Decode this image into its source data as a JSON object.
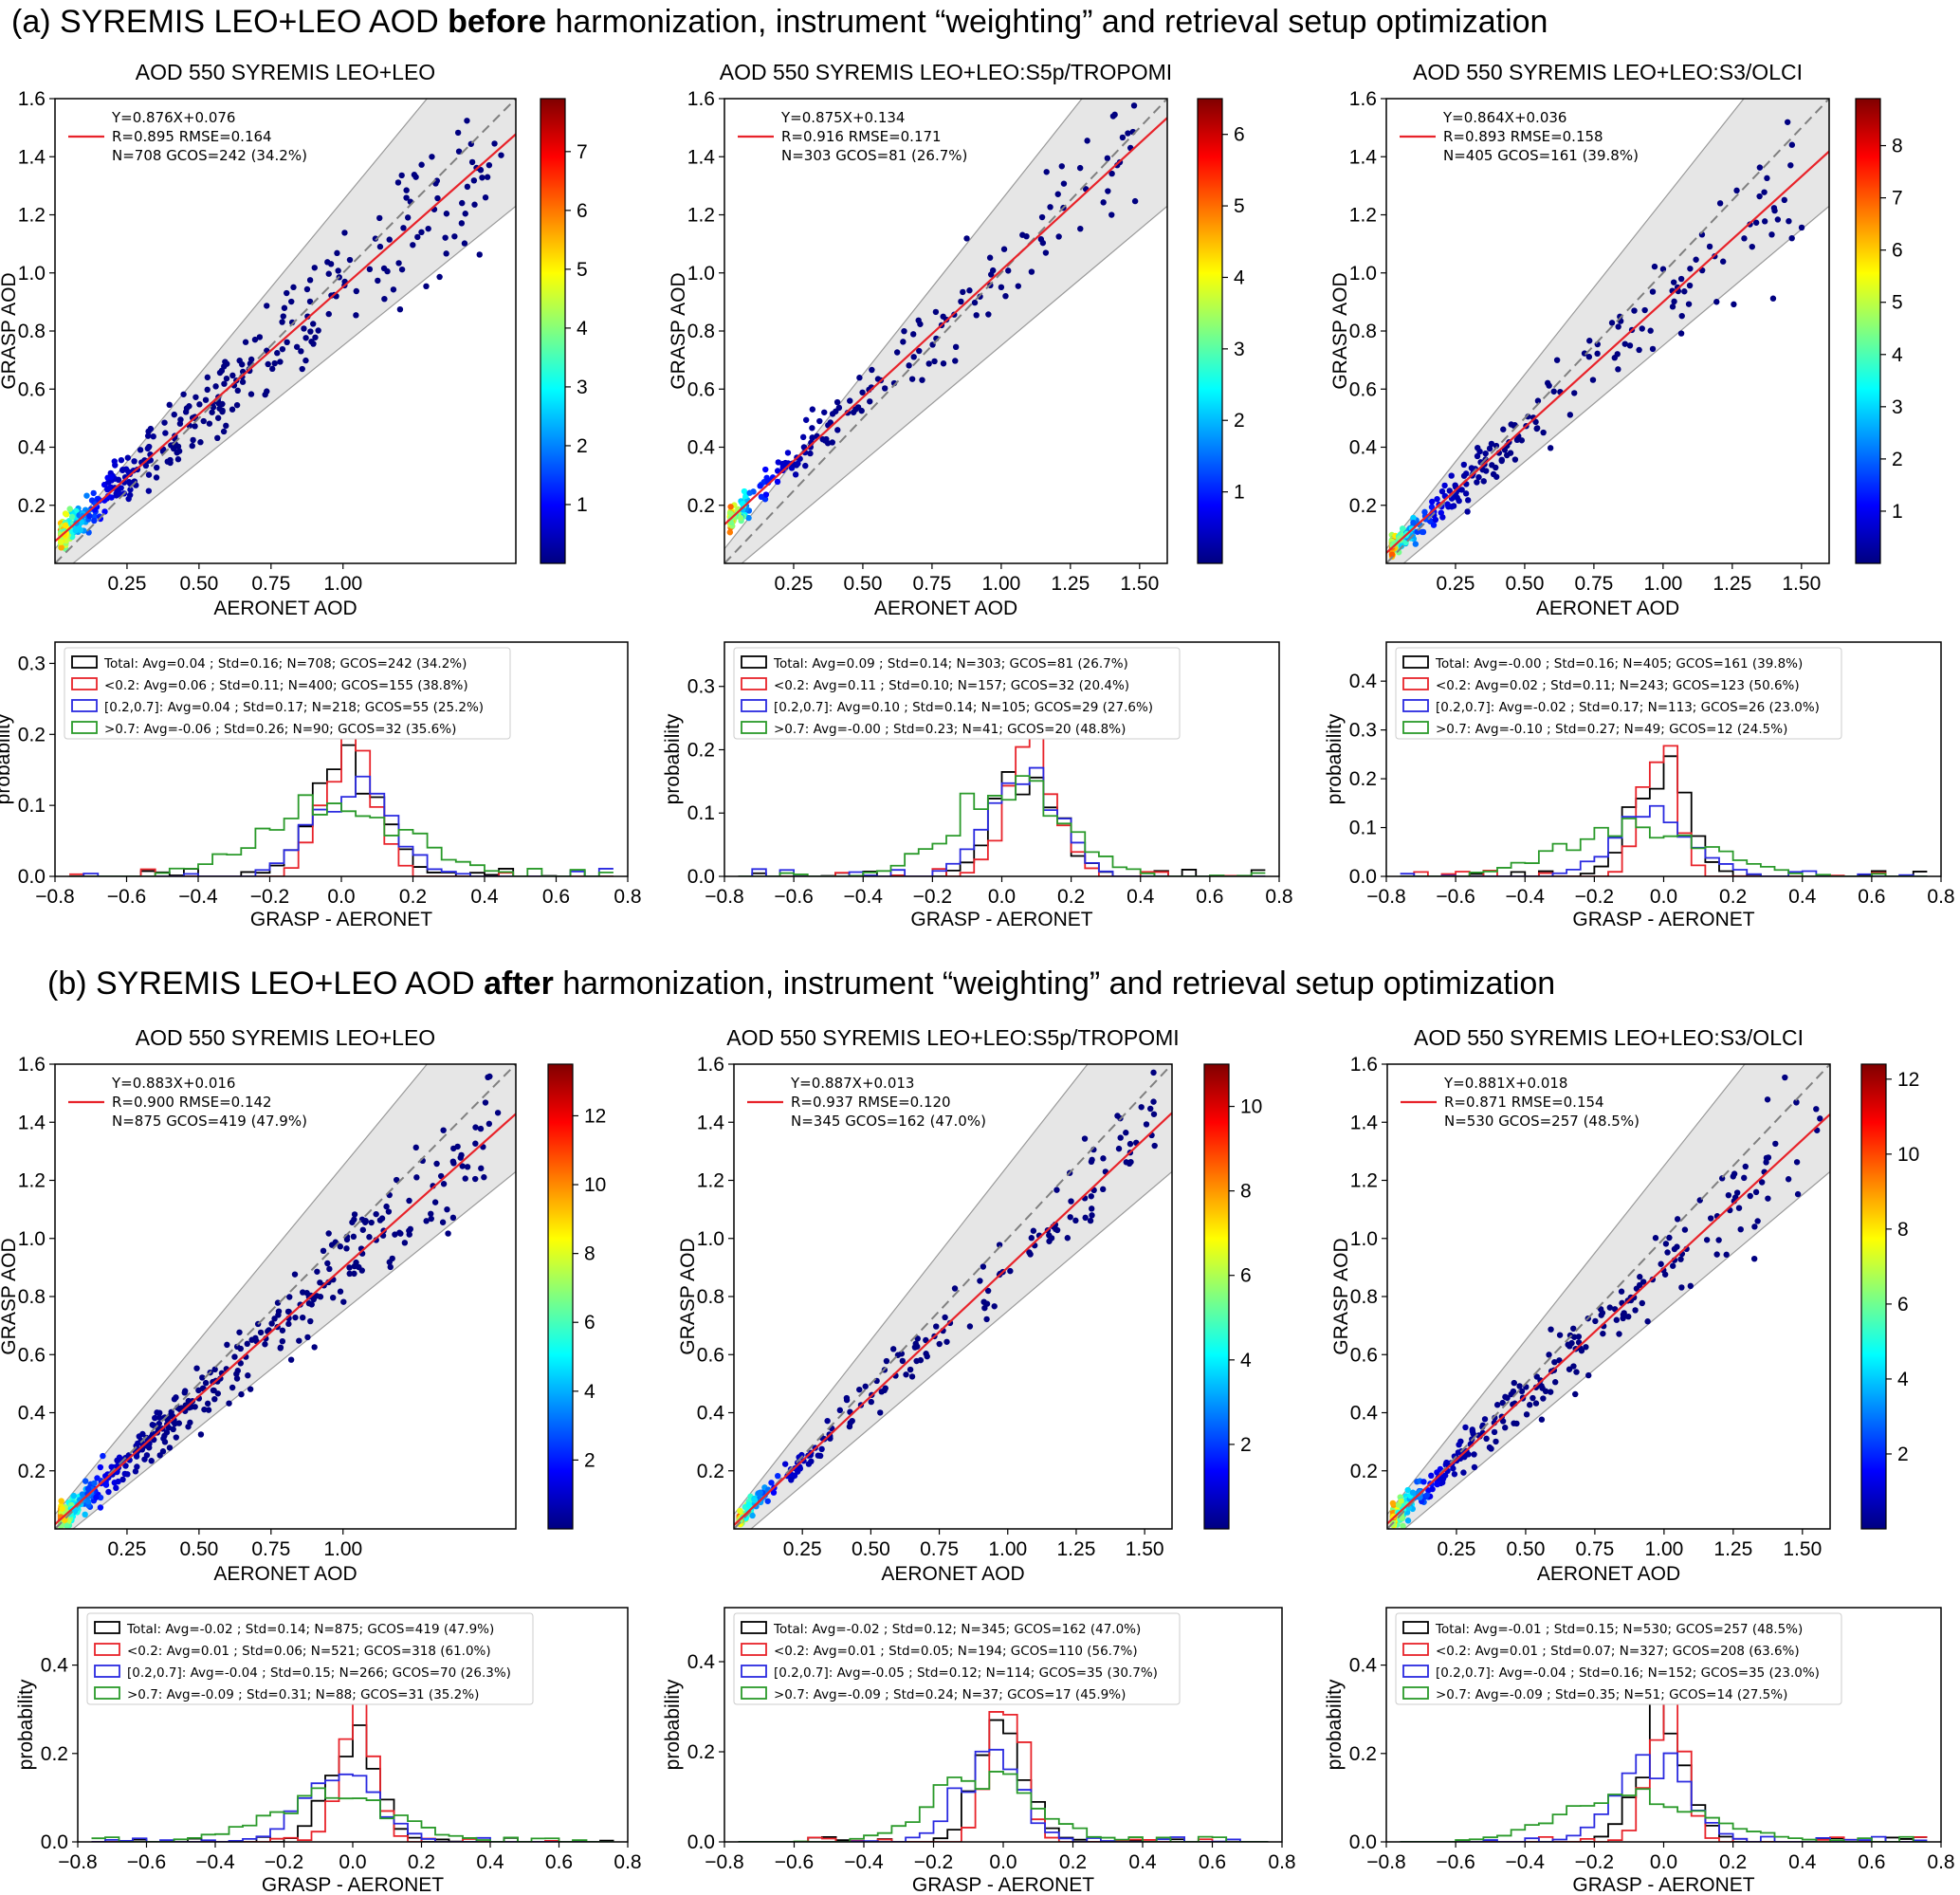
{
  "sections": [
    {
      "prefix": "(a) SYREMIS LEO+LEO AOD ",
      "bold": "before",
      "suffix": " harmonization, instrument “weighting” and retrieval setup optimization"
    },
    {
      "prefix": "(b) SYREMIS LEO+LEO AOD ",
      "bold": "after",
      "suffix": " harmonization, instrument “weighting” and retrieval setup optimization"
    }
  ],
  "chart_data": [
    {
      "type": "scatter",
      "title": "AOD 550 SYREMIS LEO+LEO",
      "xlabel": "AERONET AOD",
      "ylabel": "GRASP AOD",
      "xlim": [
        0,
        1.6
      ],
      "ylim": [
        0,
        1.6
      ],
      "xticks": [
        "0.25",
        "0.50",
        "0.75",
        "1.00"
      ],
      "yticks": [
        "0.2",
        "0.4",
        "0.6",
        "0.8",
        "1.0",
        "1.2",
        "1.4",
        "1.6"
      ],
      "fit": {
        "slope": 0.876,
        "intercept": 0.076
      },
      "stats": [
        "Y=0.876X+0.076",
        "R=0.895  RMSE=0.164",
        "N=708 GCOS=242 (34.2%)"
      ],
      "colorbar": {
        "min": 0,
        "max": 7.9,
        "ticks": [
          "1",
          "2",
          "3",
          "4",
          "5",
          "6",
          "7"
        ]
      },
      "spread": 0.14,
      "n_points": 420
    },
    {
      "type": "scatter",
      "title": "AOD 550 SYREMIS LEO+LEO:S5p/TROPOMI",
      "xlabel": "AERONET AOD",
      "ylabel": "GRASP AOD",
      "xlim": [
        0,
        1.6
      ],
      "ylim": [
        0,
        1.6
      ],
      "xticks": [
        "0.25",
        "0.50",
        "0.75",
        "1.00",
        "1.25",
        "1.50"
      ],
      "yticks": [
        "0.2",
        "0.4",
        "0.6",
        "0.8",
        "1.0",
        "1.2",
        "1.4",
        "1.6"
      ],
      "fit": {
        "slope": 0.875,
        "intercept": 0.134
      },
      "stats": [
        "Y=0.875X+0.134",
        "R=0.916  RMSE=0.171",
        "N=303 GCOS=81 (26.7%)"
      ],
      "colorbar": {
        "min": 0,
        "max": 6.5,
        "ticks": [
          "1",
          "2",
          "3",
          "4",
          "5",
          "6"
        ]
      },
      "spread": 0.13,
      "n_points": 220
    },
    {
      "type": "scatter",
      "title": "AOD 550 SYREMIS LEO+LEO:S3/OLCI",
      "xlabel": "AERONET AOD",
      "ylabel": "GRASP AOD",
      "xlim": [
        0,
        1.6
      ],
      "ylim": [
        0,
        1.6
      ],
      "xticks": [
        "0.25",
        "0.50",
        "0.75",
        "1.00",
        "1.25",
        "1.50"
      ],
      "yticks": [
        "0.2",
        "0.4",
        "0.6",
        "0.8",
        "1.0",
        "1.2",
        "1.4",
        "1.6"
      ],
      "fit": {
        "slope": 0.864,
        "intercept": 0.036
      },
      "stats": [
        "Y=0.864X+0.036",
        "R=0.893  RMSE=0.158",
        "N=405 GCOS=161 (39.8%)"
      ],
      "colorbar": {
        "min": 0,
        "max": 8.9,
        "ticks": [
          "1",
          "2",
          "3",
          "4",
          "5",
          "6",
          "7",
          "8"
        ]
      },
      "spread": 0.13,
      "n_points": 280
    },
    {
      "type": "histogram",
      "xlabel": "GRASP - AERONET",
      "ylabel": "probability",
      "xlim": [
        -0.8,
        0.8
      ],
      "ylim": [
        0,
        0.33
      ],
      "xticks": [
        "−0.8",
        "−0.6",
        "−0.4",
        "−0.2",
        "0.0",
        "0.2",
        "0.4",
        "0.6",
        "0.8"
      ],
      "yticks": [
        "0.0",
        "0.1",
        "0.2",
        "0.3"
      ],
      "ytick_values": [
        0,
        0.1,
        0.2,
        0.3
      ],
      "series": [
        {
          "name": "Total: Avg=0.04 ; Std=0.16; N=708; GCOS=242 (34.2%)",
          "mean": 0.02,
          "sd": 0.09,
          "peak": 0.16
        },
        {
          "name": "<0.2: Avg=0.06 ; Std=0.11; N=400; GCOS=155 (38.8%)",
          "mean": 0.02,
          "sd": 0.07,
          "peak": 0.19
        },
        {
          "name": "[0.2,0.7]: Avg=0.04 ; Std=0.17; N=218; GCOS=55 (25.2%)",
          "mean": 0.03,
          "sd": 0.11,
          "peak": 0.12
        },
        {
          "name": ">0.7: Avg=-0.06 ; Std=0.26; N=90; GCOS=32 (35.6%)",
          "mean": -0.02,
          "sd": 0.2,
          "peak": 0.1
        }
      ]
    },
    {
      "type": "histogram",
      "xlabel": "GRASP - AERONET",
      "ylabel": "probability",
      "xlim": [
        -0.8,
        0.8
      ],
      "ylim": [
        0,
        0.37
      ],
      "xticks": [
        "−0.8",
        "−0.6",
        "−0.4",
        "−0.2",
        "0.0",
        "0.2",
        "0.4",
        "0.6",
        "0.8"
      ],
      "yticks": [
        "0.0",
        "0.1",
        "0.2",
        "0.3"
      ],
      "ytick_values": [
        0,
        0.1,
        0.2,
        0.3
      ],
      "series": [
        {
          "name": "Total: Avg=0.09 ; Std=0.14; N=303; GCOS=81 (26.7%)",
          "mean": 0.07,
          "sd": 0.09,
          "peak": 0.17
        },
        {
          "name": "<0.2: Avg=0.11 ; Std=0.10; N=157; GCOS=32 (20.4%)",
          "mean": 0.09,
          "sd": 0.07,
          "peak": 0.22
        },
        {
          "name": "[0.2,0.7]: Avg=0.10 ; Std=0.14; N=105; GCOS=29 (27.6%)",
          "mean": 0.06,
          "sd": 0.1,
          "peak": 0.16
        },
        {
          "name": ">0.7: Avg=-0.00 ; Std=0.23; N=41; GCOS=20 (48.8%)",
          "mean": 0.02,
          "sd": 0.16,
          "peak": 0.14
        }
      ]
    },
    {
      "type": "histogram",
      "xlabel": "GRASP - AERONET",
      "ylabel": "probability",
      "xlim": [
        -0.8,
        0.8
      ],
      "ylim": [
        0,
        0.48
      ],
      "xticks": [
        "−0.8",
        "−0.6",
        "−0.4",
        "−0.2",
        "0.0",
        "0.2",
        "0.4",
        "0.6",
        "0.8"
      ],
      "yticks": [
        "0.0",
        "0.1",
        "0.2",
        "0.3",
        "0.4"
      ],
      "ytick_values": [
        0,
        0.1,
        0.2,
        0.3,
        0.4
      ],
      "series": [
        {
          "name": "Total: Avg=-0.00 ; Std=0.16; N=405; GCOS=161 (39.8%)",
          "mean": -0.01,
          "sd": 0.08,
          "peak": 0.22
        },
        {
          "name": "<0.2: Avg=0.02 ; Std=0.11; N=243; GCOS=123 (50.6%)",
          "mean": -0.01,
          "sd": 0.05,
          "peak": 0.29
        },
        {
          "name": "[0.2,0.7]: Avg=-0.02 ; Std=0.17; N=113; GCOS=26 (23.0%)",
          "mean": -0.02,
          "sd": 0.11,
          "peak": 0.13
        },
        {
          "name": ">0.7: Avg=-0.10 ; Std=0.27; N=49; GCOS=12 (24.5%)",
          "mean": -0.08,
          "sd": 0.2,
          "peak": 0.1
        }
      ]
    },
    {
      "type": "scatter",
      "title": "AOD 550 SYREMIS LEO+LEO",
      "xlabel": "AERONET AOD",
      "ylabel": "GRASP AOD",
      "xlim": [
        0,
        1.6
      ],
      "ylim": [
        0,
        1.6
      ],
      "xticks": [
        "0.25",
        "0.50",
        "0.75",
        "1.00"
      ],
      "yticks": [
        "0.2",
        "0.4",
        "0.6",
        "0.8",
        "1.0",
        "1.2",
        "1.4",
        "1.6"
      ],
      "fit": {
        "slope": 0.883,
        "intercept": 0.016
      },
      "stats": [
        "Y=0.883X+0.016",
        "R=0.900  RMSE=0.142",
        "N=875 GCOS=419 (47.9%)"
      ],
      "colorbar": {
        "min": 0,
        "max": 13.5,
        "ticks": [
          "2",
          "4",
          "6",
          "8",
          "10",
          "12"
        ]
      },
      "spread": 0.11,
      "n_points": 480
    },
    {
      "type": "scatter",
      "title": "AOD 550 SYREMIS LEO+LEO:S5p/TROPOMI",
      "xlabel": "AERONET AOD",
      "ylabel": "GRASP AOD",
      "xlim": [
        0,
        1.6
      ],
      "ylim": [
        0,
        1.6
      ],
      "xticks": [
        "0.25",
        "0.50",
        "0.75",
        "1.00",
        "1.25",
        "1.50"
      ],
      "yticks": [
        "0.2",
        "0.4",
        "0.6",
        "0.8",
        "1.0",
        "1.2",
        "1.4",
        "1.6"
      ],
      "fit": {
        "slope": 0.887,
        "intercept": 0.013
      },
      "stats": [
        "Y=0.887X+0.013",
        "R=0.937  RMSE=0.120",
        "N=345 GCOS=162 (47.0%)"
      ],
      "colorbar": {
        "min": 0,
        "max": 11,
        "ticks": [
          "2",
          "4",
          "6",
          "8",
          "10"
        ]
      },
      "spread": 0.09,
      "n_points": 240
    },
    {
      "type": "scatter",
      "title": "AOD 550 SYREMIS LEO+LEO:S3/OLCI",
      "xlabel": "AERONET AOD",
      "ylabel": "GRASP AOD",
      "xlim": [
        0,
        1.6
      ],
      "ylim": [
        0,
        1.6
      ],
      "xticks": [
        "0.25",
        "0.50",
        "0.75",
        "1.00",
        "1.25",
        "1.50"
      ],
      "yticks": [
        "0.2",
        "0.4",
        "0.6",
        "0.8",
        "1.0",
        "1.2",
        "1.4",
        "1.6"
      ],
      "fit": {
        "slope": 0.881,
        "intercept": 0.018
      },
      "stats": [
        "Y=0.881X+0.018",
        "R=0.871  RMSE=0.154",
        "N=530 GCOS=257 (48.5%)"
      ],
      "colorbar": {
        "min": 0,
        "max": 12.4,
        "ticks": [
          "2",
          "4",
          "6",
          "8",
          "10",
          "12"
        ]
      },
      "spread": 0.11,
      "n_points": 330
    },
    {
      "type": "histogram",
      "xlabel": "GRASP - AERONET",
      "ylabel": "probability",
      "xlim": [
        -0.8,
        0.8
      ],
      "ylim": [
        0,
        0.53
      ],
      "xticks": [
        "−0.8",
        "−0.6",
        "−0.4",
        "−0.2",
        "0.0",
        "0.2",
        "0.4",
        "0.6",
        "0.8"
      ],
      "yticks": [
        "0.0",
        "0.2",
        "0.4"
      ],
      "ytick_values": [
        0,
        0.2,
        0.4
      ],
      "series": [
        {
          "name": "Total: Avg=-0.02 ; Std=0.14; N=875; GCOS=419 (47.9%)",
          "mean": 0.0,
          "sd": 0.07,
          "peak": 0.23
        },
        {
          "name": "<0.2: Avg=0.01 ; Std=0.06; N=521; GCOS=318 (61.0%)",
          "mean": 0.01,
          "sd": 0.05,
          "peak": 0.32
        },
        {
          "name": "[0.2,0.7]: Avg=-0.04 ; Std=0.15; N=266; GCOS=70 (26.3%)",
          "mean": -0.04,
          "sd": 0.1,
          "peak": 0.17
        },
        {
          "name": ">0.7: Avg=-0.09 ; Std=0.31; N=88; GCOS=31 (35.2%)",
          "mean": -0.06,
          "sd": 0.18,
          "peak": 0.1
        }
      ]
    },
    {
      "type": "histogram",
      "xlabel": "GRASP - AERONET",
      "ylabel": "probability",
      "xlim": [
        -0.8,
        0.8
      ],
      "ylim": [
        0,
        0.52
      ],
      "xticks": [
        "−0.8",
        "−0.6",
        "−0.4",
        "−0.2",
        "0.0",
        "0.2",
        "0.4",
        "0.6",
        "0.8"
      ],
      "yticks": [
        "0.0",
        "0.2",
        "0.4"
      ],
      "ytick_values": [
        0,
        0.2,
        0.4
      ],
      "series": [
        {
          "name": "Total: Avg=-0.02 ; Std=0.12; N=345; GCOS=162 (47.0%)",
          "mean": 0.0,
          "sd": 0.07,
          "peak": 0.26
        },
        {
          "name": "<0.2: Avg=0.01 ; Std=0.05; N=194; GCOS=110 (56.7%)",
          "mean": 0.01,
          "sd": 0.05,
          "peak": 0.31
        },
        {
          "name": "[0.2,0.7]: Avg=-0.05 ; Std=0.12; N=114; GCOS=35 (30.7%)",
          "mean": -0.04,
          "sd": 0.09,
          "peak": 0.18
        },
        {
          "name": ">0.7: Avg=-0.09 ; Std=0.24; N=37; GCOS=17 (45.9%)",
          "mean": -0.06,
          "sd": 0.15,
          "peak": 0.14
        }
      ]
    },
    {
      "type": "histogram",
      "xlabel": "GRASP - AERONET",
      "ylabel": "probability",
      "xlim": [
        -0.8,
        0.8
      ],
      "ylim": [
        0,
        0.53
      ],
      "xticks": [
        "−0.8",
        "−0.6",
        "−0.4",
        "−0.2",
        "0.0",
        "0.2",
        "0.4",
        "0.6",
        "0.8"
      ],
      "yticks": [
        "0.0",
        "0.2",
        "0.4"
      ],
      "ytick_values": [
        0,
        0.2,
        0.4
      ],
      "series": [
        {
          "name": "Total: Avg=-0.01 ; Std=0.15; N=530; GCOS=257 (48.5%)",
          "mean": 0.0,
          "sd": 0.07,
          "peak": 0.27
        },
        {
          "name": "<0.2: Avg=0.01 ; Std=0.07; N=327; GCOS=208 (63.6%)",
          "mean": 0.01,
          "sd": 0.05,
          "peak": 0.32
        },
        {
          "name": "[0.2,0.7]: Avg=-0.04 ; Std=0.16; N=152; GCOS=35 (23.0%)",
          "mean": -0.03,
          "sd": 0.1,
          "peak": 0.19
        },
        {
          "name": ">0.7: Avg=-0.09 ; Std=0.35; N=51; GCOS=14 (27.5%)",
          "mean": -0.08,
          "sd": 0.2,
          "peak": 0.1
        }
      ]
    }
  ],
  "colors": {
    "fit": "#e8232a",
    "one_to_one": "#808080",
    "band": "#d9d9d9",
    "total": "#000000",
    "lt02": "#e8232a",
    "mid": "#2a2ae0",
    "gt07": "#2a9a2a"
  }
}
